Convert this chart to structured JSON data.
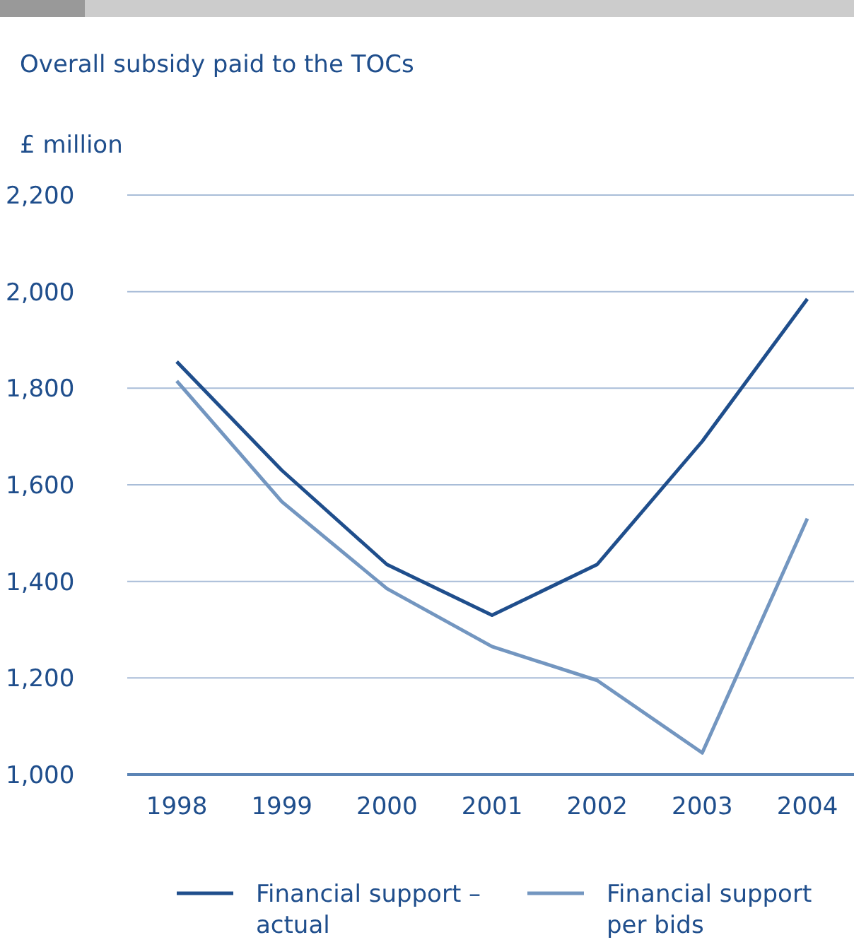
{
  "chart_data": {
    "type": "line",
    "title": "Overall subsidy paid to the TOCs",
    "ylabel": "£ million",
    "categories": [
      "1998",
      "1999",
      "2000",
      "2001",
      "2002",
      "2003",
      "2004"
    ],
    "series": [
      {
        "name": "Financial support – actual",
        "color": "#1f4e8c",
        "values": [
          1855,
          1630,
          1435,
          1330,
          1435,
          1690,
          1985
        ]
      },
      {
        "name": "Financial support per bids",
        "color": "#7396c0",
        "values": [
          1815,
          1565,
          1385,
          1265,
          1195,
          1045,
          1530
        ]
      }
    ],
    "ylim": [
      1000,
      2200
    ],
    "yticks": [
      {
        "value": 1000,
        "label": "1,000"
      },
      {
        "value": 1200,
        "label": "1,200"
      },
      {
        "value": 1400,
        "label": "1,400"
      },
      {
        "value": 1600,
        "label": "1,600"
      },
      {
        "value": 1800,
        "label": "1,800"
      },
      {
        "value": 2000,
        "label": "2,000"
      },
      {
        "value": 2200,
        "label": "2,200"
      }
    ],
    "grid": "y",
    "legend": "bottom",
    "marker": "none",
    "line_style": "solid"
  }
}
